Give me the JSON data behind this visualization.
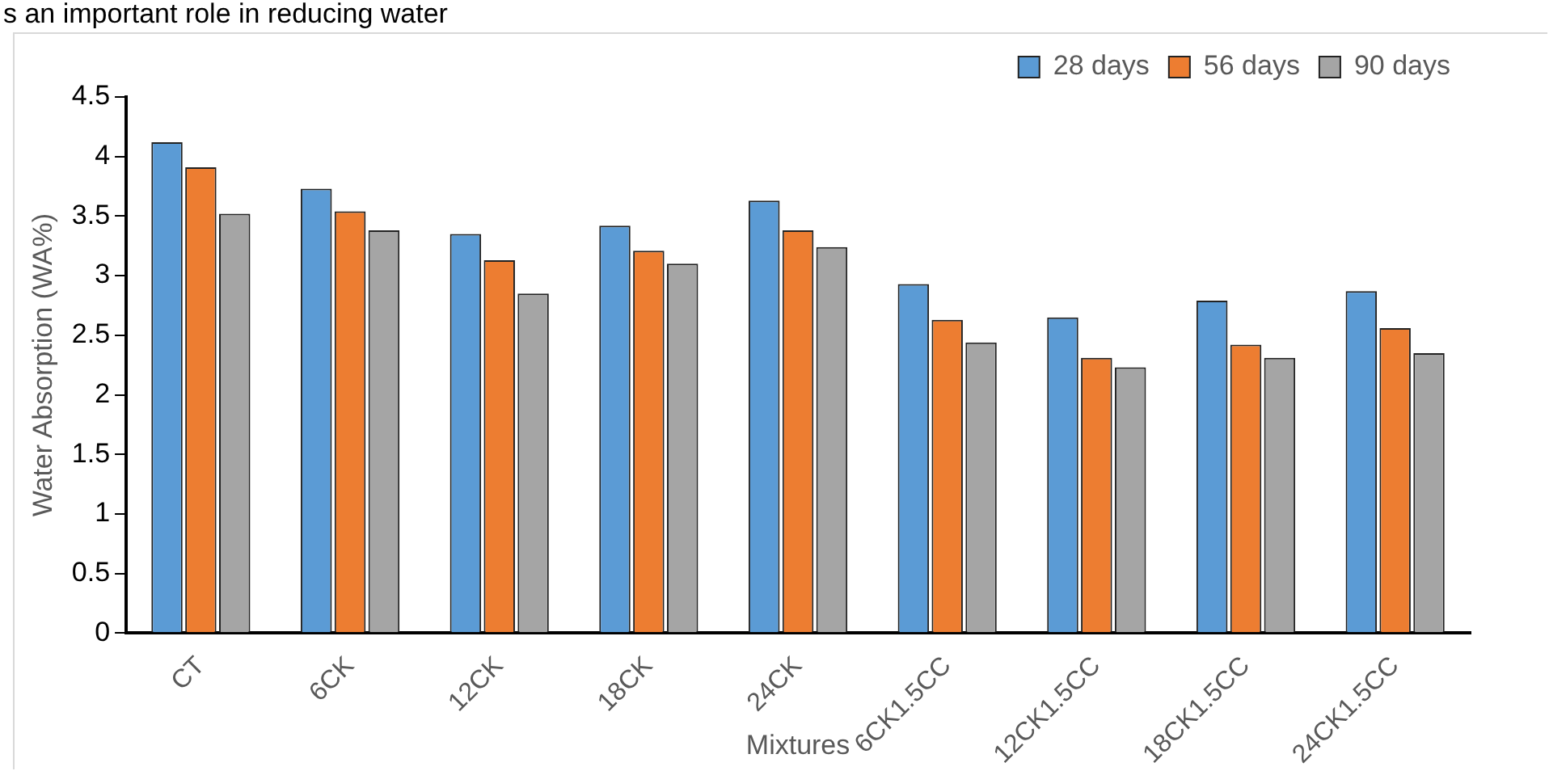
{
  "chart_data": {
    "type": "bar",
    "xlabel": "Mixtures",
    "ylabel": "Water Absorption (WA%)",
    "annotations": [
      "s an important role in reducing water"
    ],
    "categories": [
      "CT",
      "6CK",
      "12CK",
      "18CK",
      "24CK",
      "6CK1.5CC",
      "12CK1.5CC",
      "18CK1.5CC",
      "24CK1.5CC"
    ],
    "series": [
      {
        "name": "28 days",
        "color": "#5b9bd5",
        "values": [
          4.12,
          3.73,
          3.35,
          3.42,
          3.63,
          2.93,
          2.65,
          2.79,
          2.87
        ]
      },
      {
        "name": "56 days",
        "color": "#ed7d31",
        "values": [
          3.91,
          3.54,
          3.13,
          3.21,
          3.38,
          2.63,
          2.31,
          2.42,
          2.56
        ]
      },
      {
        "name": "90 days",
        "color": "#a5a5a5",
        "values": [
          3.52,
          3.38,
          2.85,
          3.1,
          3.24,
          2.44,
          2.23,
          2.31,
          2.35
        ]
      }
    ],
    "ylim": [
      0,
      4.5
    ],
    "yticks": [
      0,
      0.5,
      1,
      1.5,
      2,
      2.5,
      3,
      3.5,
      4,
      4.5
    ],
    "grid": false,
    "legend": "top right"
  }
}
